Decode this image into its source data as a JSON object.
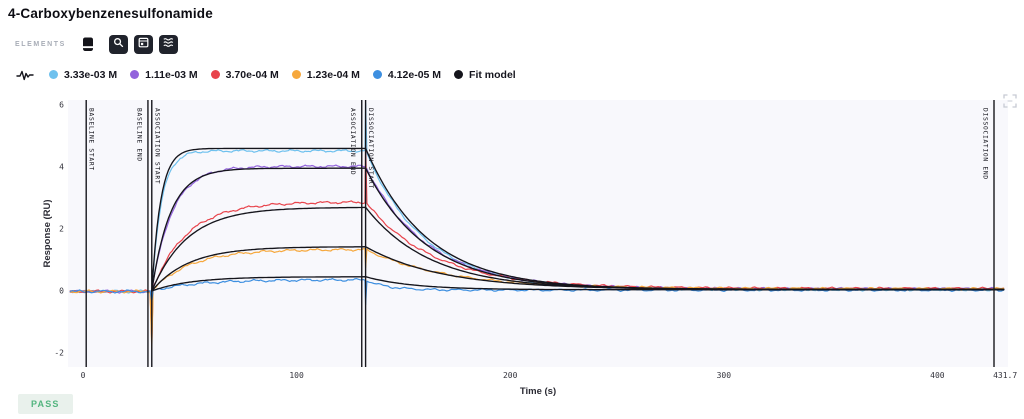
{
  "header": {
    "title": "4-Carboxybenzenesulfonamide"
  },
  "toolbar": {
    "label": "ELEMENTS",
    "icons": [
      "notebook-icon",
      "zoom-icon",
      "calendar-icon",
      "filter-lines-icon"
    ]
  },
  "status": {
    "label": "PASS",
    "color": "#53b57f"
  },
  "chart_data": {
    "type": "line",
    "title": "",
    "xlabel": "Time (s)",
    "ylabel": "Response (RU)",
    "xlim": [
      -7,
      432.5
    ],
    "ylim": [
      -2.45,
      6.16
    ],
    "x_ticks": [
      0,
      100,
      200,
      300,
      400
    ],
    "x_axis_end_label": "431.7",
    "y_ticks": [
      -2,
      0,
      2,
      4,
      6
    ],
    "grid": false,
    "legend_position": "top",
    "plot_bg": "#f8f8fc",
    "event_line_color": "#17171d",
    "legend": [
      {
        "label": "3.33e-03 M",
        "color": "#6fc1ee"
      },
      {
        "label": "1.11e-03 M",
        "color": "#9263dc"
      },
      {
        "label": "3.70e-04 M",
        "color": "#e8444c"
      },
      {
        "label": "1.23e-04 M",
        "color": "#f6a83d"
      },
      {
        "label": "4.12e-05 M",
        "color": "#3d8fe0"
      },
      {
        "label": "Fit model",
        "color": "#15151c"
      }
    ],
    "phases": {
      "baseline_start": 1.5,
      "baseline_end": 30.4,
      "association_start": 32.2,
      "association_end": 130.5,
      "dissociation_start": 132.3,
      "dissociation_end": 426.5
    },
    "events": [
      {
        "label": "BASELINE START",
        "time": 1.5,
        "side": "right"
      },
      {
        "label": "BASELINE END",
        "time": 30.4,
        "side": "left"
      },
      {
        "label": "ASSOCIATION START",
        "time": 32.2,
        "side": "right"
      },
      {
        "label": "ASSOCIATION END",
        "time": 130.5,
        "side": "left"
      },
      {
        "label": "DISSOCIATION START",
        "time": 132.3,
        "side": "right"
      },
      {
        "label": "DISSOCIATION END",
        "time": 426.5,
        "side": "left"
      }
    ],
    "series": [
      {
        "name": "3.33e-03 M",
        "role": "data",
        "color": "#6fc1ee",
        "t_start": -6,
        "plateau": 4.52,
        "k_on": 0.22,
        "k_off": 0.036,
        "assoc_dip": -0.3,
        "dissoc_spike": 6.05,
        "end_level": 0.04
      },
      {
        "name": "1.11e-03 M",
        "role": "data",
        "color": "#9263dc",
        "t_start": -6,
        "plateau": 4.02,
        "k_on": 0.105,
        "k_off": 0.035,
        "assoc_dip": -0.6,
        "dissoc_spike": null,
        "end_level": 0.07
      },
      {
        "name": "3.70e-04 M",
        "role": "data",
        "color": "#e8444c",
        "t_start": -6,
        "plateau": 2.87,
        "k_on": 0.062,
        "k_off": 0.031,
        "assoc_dip": -1.7,
        "dissoc_spike": 4.7,
        "end_level": 0.08
      },
      {
        "name": "1.23e-04 M",
        "role": "data",
        "color": "#f6a83d",
        "t_start": -6,
        "plateau": 1.34,
        "k_on": 0.056,
        "k_off": 0.026,
        "assoc_dip": -1.9,
        "dissoc_spike": 0.75,
        "end_level": 0.07
      },
      {
        "name": "4.12e-05 M",
        "role": "data",
        "color": "#3d8fe0",
        "t_start": -6,
        "plateau": 0.36,
        "k_on": 0.05,
        "k_off": 0.1,
        "assoc_dip": -0.35,
        "dissoc_spike": -0.45,
        "end_level": 0.03
      },
      {
        "name": "Fit model",
        "fit_of": "3.33e-03 M",
        "role": "fit",
        "color": "#15151c",
        "plateau": 4.6,
        "k_on": 0.24,
        "k_off": 0.035,
        "end_level": 0.05
      },
      {
        "name": "Fit model",
        "fit_of": "1.11e-03 M",
        "role": "fit",
        "color": "#15151c",
        "plateau": 3.96,
        "k_on": 0.115,
        "k_off": 0.035,
        "end_level": 0.05
      },
      {
        "name": "Fit model",
        "fit_of": "3.70e-04 M",
        "role": "fit",
        "color": "#15151c",
        "plateau": 2.7,
        "k_on": 0.06,
        "k_off": 0.033,
        "end_level": 0.05
      },
      {
        "name": "Fit model",
        "fit_of": "1.23e-04 M",
        "role": "fit",
        "color": "#15151c",
        "plateau": 1.43,
        "k_on": 0.058,
        "k_off": 0.028,
        "end_level": 0.05
      },
      {
        "name": "Fit model",
        "fit_of": "4.12e-05 M",
        "role": "fit",
        "color": "#15151c",
        "plateau": 0.46,
        "k_on": 0.055,
        "k_off": 0.045,
        "end_level": 0.04
      }
    ]
  }
}
